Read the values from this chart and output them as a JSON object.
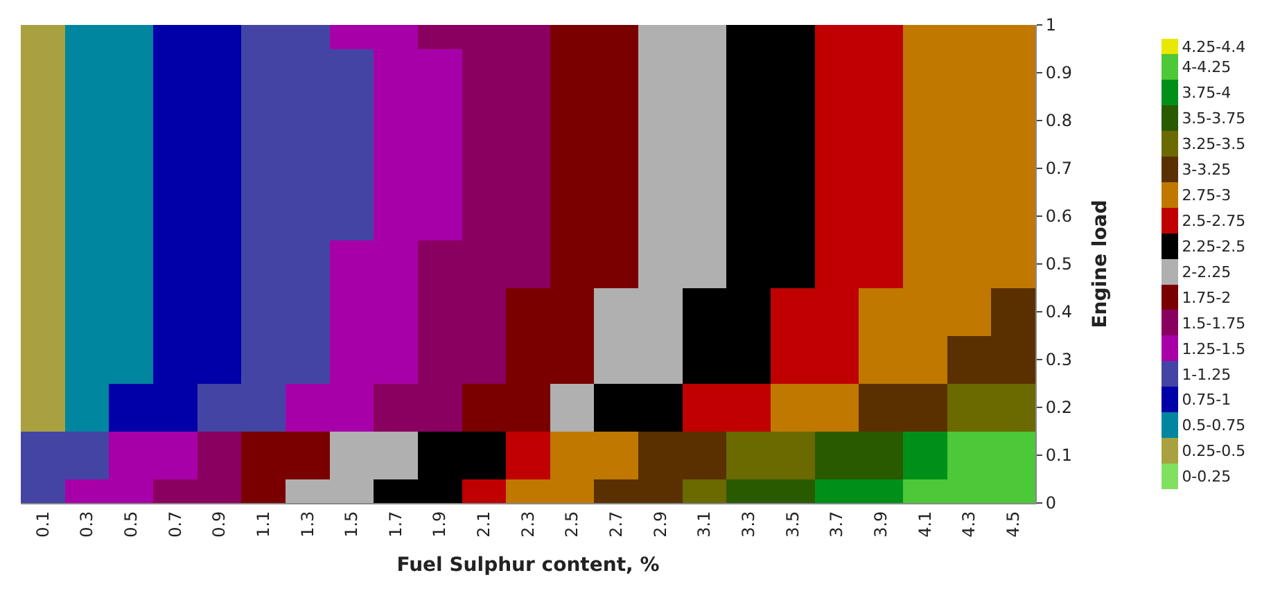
{
  "chart_data": {
    "type": "heatmap",
    "xlabel": "Fuel Sulphur content, %",
    "ylabel": "Engine load",
    "categories": [
      "0.1",
      "0.3",
      "0.5",
      "0.7",
      "0.9",
      "1.1",
      "1.3",
      "1.5",
      "1.7",
      "1.9",
      "2.1",
      "2.3",
      "2.5",
      "2.7",
      "2.9",
      "3.1",
      "3.3",
      "3.5",
      "3.7",
      "3.9",
      "4.1",
      "4.3",
      "4.5"
    ],
    "y_categories": [
      "1",
      "0.9",
      "0.8",
      "0.7",
      "0.6",
      "0.5",
      "0.4",
      "0.3",
      "0.2",
      "0.1",
      "0"
    ],
    "cells": [
      [
        0.41,
        0.53,
        0.65,
        0.77,
        0.89,
        1.02,
        1.14,
        1.26,
        1.38,
        1.51,
        1.62,
        1.74,
        1.86,
        1.98,
        2.1,
        2.22,
        2.34,
        2.46,
        2.58,
        2.7,
        2.82,
        2.94,
        2.99
      ],
      [
        0.41,
        0.53,
        0.65,
        0.77,
        0.89,
        1.01,
        1.12,
        1.24,
        1.36,
        1.48,
        1.6,
        1.72,
        1.84,
        1.96,
        2.08,
        2.2,
        2.32,
        2.44,
        2.56,
        2.67,
        2.79,
        2.91,
        2.98
      ],
      [
        0.41,
        0.53,
        0.64,
        0.76,
        0.88,
        1.01,
        1.12,
        1.23,
        1.35,
        1.47,
        1.59,
        1.71,
        1.83,
        1.94,
        2.06,
        2.18,
        2.3,
        2.42,
        2.53,
        2.65,
        2.77,
        2.89,
        2.97
      ],
      [
        0.41,
        0.53,
        0.64,
        0.76,
        0.88,
        1.01,
        1.12,
        1.23,
        1.35,
        1.47,
        1.59,
        1.7,
        1.82,
        1.94,
        2.06,
        2.18,
        2.29,
        2.41,
        2.53,
        2.65,
        2.77,
        2.89,
        2.97
      ],
      [
        0.41,
        0.53,
        0.64,
        0.76,
        0.88,
        1.01,
        1.12,
        1.23,
        1.35,
        1.47,
        1.59,
        1.71,
        1.82,
        1.94,
        2.06,
        2.18,
        2.3,
        2.41,
        2.53,
        2.65,
        2.77,
        2.89,
        2.98
      ],
      [
        0.41,
        0.53,
        0.65,
        0.77,
        0.89,
        1.02,
        1.14,
        1.26,
        1.38,
        1.51,
        1.62,
        1.74,
        1.86,
        1.98,
        2.1,
        2.22,
        2.34,
        2.46,
        2.58,
        2.7,
        2.82,
        2.94,
        2.99
      ],
      [
        0.42,
        0.54,
        0.67,
        0.79,
        0.91,
        1.04,
        1.16,
        1.28,
        1.41,
        1.53,
        1.65,
        1.78,
        1.9,
        2.02,
        2.14,
        2.27,
        2.39,
        2.51,
        2.64,
        2.76,
        2.88,
        2.99,
        3.13
      ],
      [
        0.44,
        0.57,
        0.7,
        0.82,
        0.95,
        1.08,
        1.21,
        1.33,
        1.46,
        1.59,
        1.71,
        1.84,
        1.97,
        2.1,
        2.22,
        2.35,
        2.48,
        2.6,
        2.73,
        2.86,
        2.99,
        3.11,
        3.24
      ],
      [
        0.49,
        0.62,
        0.76,
        0.9,
        1.03,
        1.17,
        1.3,
        1.44,
        1.58,
        1.71,
        1.85,
        1.99,
        2.12,
        2.26,
        2.4,
        2.53,
        2.67,
        2.81,
        2.94,
        3.08,
        3.21,
        3.35,
        3.49
      ],
      [
        1.07,
        1.21,
        1.35,
        1.49,
        1.63,
        1.77,
        1.91,
        2.05,
        2.19,
        2.33,
        2.47,
        2.61,
        2.76,
        2.89,
        3.03,
        3.17,
        3.31,
        3.45,
        3.59,
        3.73,
        3.87,
        4.01,
        4.15
      ],
      [
        1.11,
        1.26,
        1.41,
        1.56,
        1.72,
        1.87,
        2.02,
        2.17,
        2.32,
        2.47,
        2.63,
        2.78,
        2.93,
        3.08,
        3.23,
        3.39,
        3.54,
        3.69,
        3.84,
        3.99,
        4.12,
        4.18,
        4.23
      ]
    ],
    "clim": [
      0,
      4.4
    ],
    "cticks": [
      {
        "value": 0.125,
        "label": "0-0.25"
      },
      {
        "value": 0.375,
        "label": "0.25-0.5"
      },
      {
        "value": 0.625,
        "label": "0.5-0.75"
      },
      {
        "value": 0.875,
        "label": "0.75-1"
      },
      {
        "value": 1.125,
        "label": "1-1.25"
      },
      {
        "value": 1.375,
        "label": "1.25-1.5"
      },
      {
        "value": 1.625,
        "label": "1.5-1.75"
      },
      {
        "value": 1.875,
        "label": "1.75-2"
      },
      {
        "value": 2.125,
        "label": "2-2.25"
      },
      {
        "value": 2.375,
        "label": "2.25-2.5"
      },
      {
        "value": 2.625,
        "label": "2.5-2.75"
      },
      {
        "value": 2.875,
        "label": "2.75-3"
      },
      {
        "value": 3.125,
        "label": "3-3.25"
      },
      {
        "value": 3.375,
        "label": "3.25-3.5"
      },
      {
        "value": 3.625,
        "label": "3.5-3.75"
      },
      {
        "value": 3.875,
        "label": "3.75-4"
      },
      {
        "value": 4.125,
        "label": "4-4.25"
      },
      {
        "value": 4.325,
        "label": "4.25-4.4"
      }
    ],
    "colors": [
      "#80e060",
      "#a9a040",
      "#00869e",
      "#0000a8",
      "#4444a4",
      "#a800a8",
      "#8a0060",
      "#7a0000",
      "#b0b0b0",
      "#000000",
      "#c00000",
      "#c07800",
      "#5a3000",
      "#6a6a00",
      "#2a5a00",
      "#00901a",
      "#4cc838",
      "#e8e800"
    ]
  }
}
